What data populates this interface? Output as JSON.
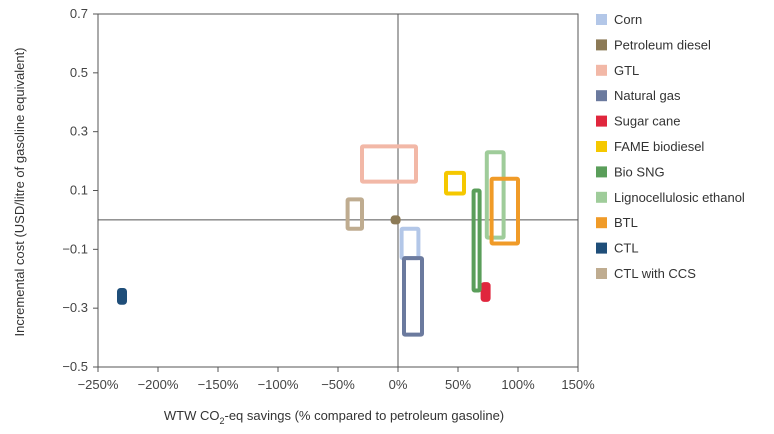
{
  "chart_data": {
    "type": "box",
    "xlabel_main": "WTW CO",
    "xlabel_sub": "2",
    "xlabel_rest": "-eq savings (% compared to petroleum gasoline)",
    "ylabel": "Incremental cost  (USD/litre of gasoline equivalent)",
    "xlim": [
      -250,
      150
    ],
    "ylim": [
      -0.5,
      0.7
    ],
    "x_ticks": [
      -250,
      -200,
      -150,
      -100,
      -50,
      0,
      50,
      100,
      150
    ],
    "x_tick_labels": [
      "−250%",
      "−200%",
      "−150%",
      "−100%",
      "−50%",
      "0%",
      "50%",
      "100%",
      "150%"
    ],
    "y_ticks": [
      -0.5,
      -0.3,
      -0.1,
      0.1,
      0.3,
      0.5,
      0.7
    ],
    "y_tick_labels": [
      "−0.5",
      "−0.3",
      "−0.1",
      "0.1",
      "0.3",
      "0.5",
      "0.7"
    ],
    "grid": false,
    "legend_position": "right",
    "series": [
      {
        "name": "Corn",
        "color": "#b3c7e8",
        "x": [
          3,
          17
        ],
        "y": [
          -0.13,
          -0.03
        ]
      },
      {
        "name": "Petroleum diesel",
        "color": "#8c7a56",
        "x": [
          -2,
          -2
        ],
        "y": [
          0.0,
          0.0
        ]
      },
      {
        "name": "GTL",
        "color": "#f2b8a7",
        "x": [
          -30,
          15
        ],
        "y": [
          0.13,
          0.25
        ]
      },
      {
        "name": "Natural gas",
        "color": "#6b7a9e",
        "x": [
          5,
          20
        ],
        "y": [
          -0.39,
          -0.13
        ]
      },
      {
        "name": "Sugar cane",
        "color": "#e0263d",
        "x": [
          73,
          73
        ],
        "y": [
          -0.27,
          -0.22
        ]
      },
      {
        "name": "FAME biodiesel",
        "color": "#f5c800",
        "x": [
          40,
          55
        ],
        "y": [
          0.09,
          0.16
        ]
      },
      {
        "name": "Bio SNG",
        "color": "#5a9e5a",
        "x": [
          63,
          68
        ],
        "y": [
          -0.24,
          0.1
        ]
      },
      {
        "name": "Lignocellulosic ethanol",
        "color": "#9fcc9a",
        "x": [
          74,
          88
        ],
        "y": [
          -0.06,
          0.23
        ]
      },
      {
        "name": "BTL",
        "color": "#f09b28",
        "x": [
          78,
          100
        ],
        "y": [
          -0.08,
          0.14
        ]
      },
      {
        "name": "CTL",
        "color": "#1f4e79",
        "x": [
          -230,
          -230
        ],
        "y": [
          -0.28,
          -0.24
        ]
      },
      {
        "name": "CTL with CCS",
        "color": "#bfac90",
        "x": [
          -42,
          -30
        ],
        "y": [
          -0.03,
          0.07
        ]
      }
    ]
  }
}
